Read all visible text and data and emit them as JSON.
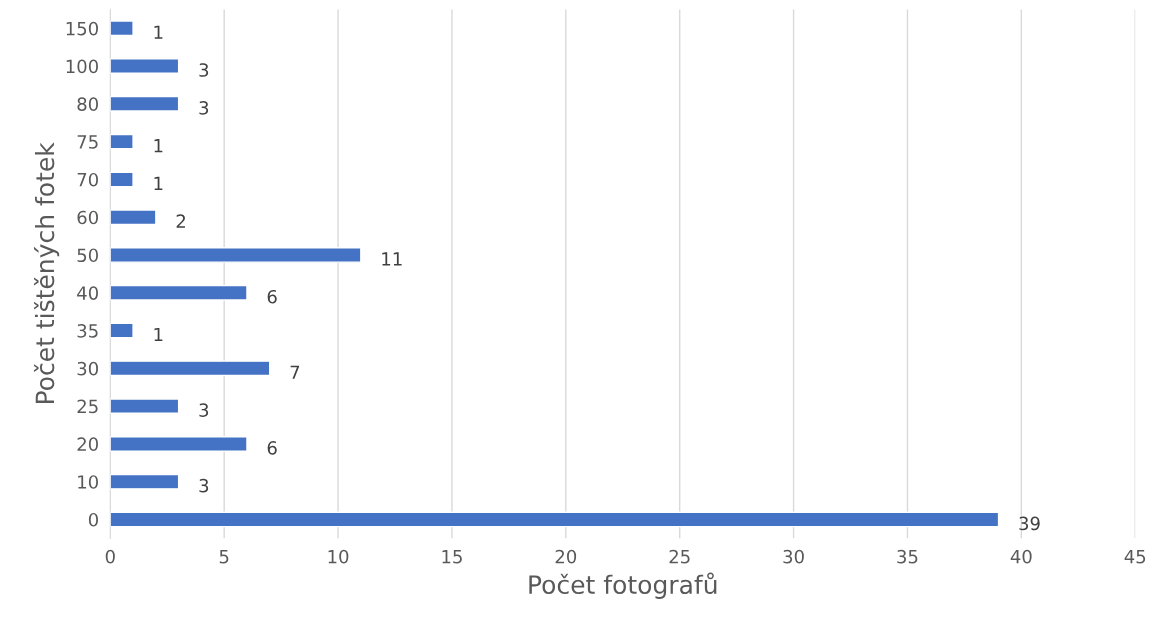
{
  "chart_data": {
    "type": "bar",
    "orientation": "horizontal",
    "xlabel": "Počet fotografů",
    "ylabel": "Počet tištěných fotek",
    "categories": [
      "150",
      "100",
      "80",
      "75",
      "70",
      "60",
      "50",
      "40",
      "35",
      "30",
      "25",
      "20",
      "10",
      "0"
    ],
    "values": [
      1,
      3,
      3,
      1,
      1,
      2,
      11,
      6,
      1,
      7,
      3,
      6,
      3,
      39
    ],
    "color": "#4472c4",
    "xlim": [
      0,
      45
    ],
    "xticks": [
      0,
      5,
      10,
      15,
      20,
      25,
      30,
      35,
      40,
      45
    ],
    "grid": "x",
    "data_labels": true
  }
}
